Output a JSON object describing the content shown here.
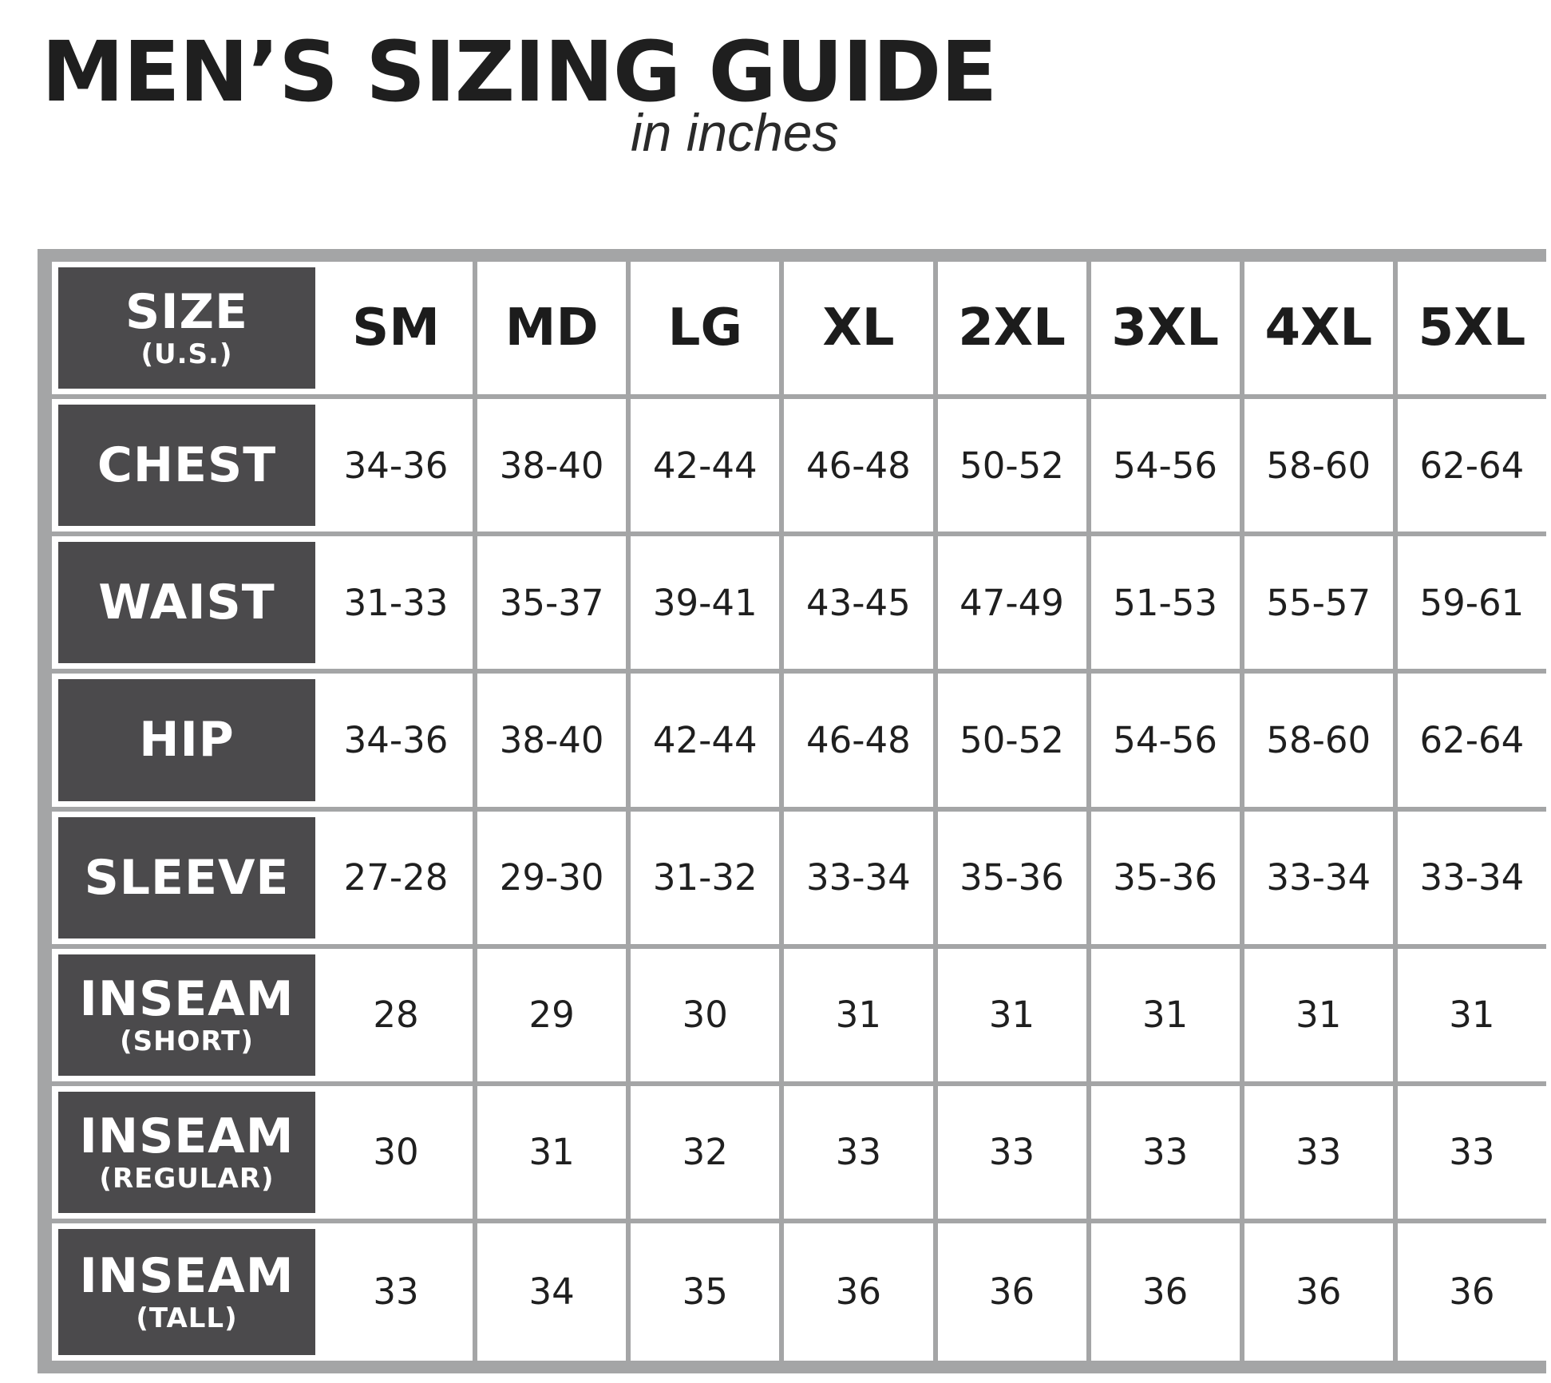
{
  "title": "MEN’S SIZING GUIDE",
  "subtitle": "in inches",
  "header": {
    "label": "SIZE",
    "sub": "(U.S.)"
  },
  "sizes": [
    "SM",
    "MD",
    "LG",
    "XL",
    "2XL",
    "3XL",
    "4XL",
    "5XL"
  ],
  "rows": [
    {
      "label": "CHEST",
      "sub": "",
      "values": [
        "34-36",
        "38-40",
        "42-44",
        "46-48",
        "50-52",
        "54-56",
        "58-60",
        "62-64"
      ]
    },
    {
      "label": "WAIST",
      "sub": "",
      "values": [
        "31-33",
        "35-37",
        "39-41",
        "43-45",
        "47-49",
        "51-53",
        "55-57",
        "59-61"
      ]
    },
    {
      "label": "HIP",
      "sub": "",
      "values": [
        "34-36",
        "38-40",
        "42-44",
        "46-48",
        "50-52",
        "54-56",
        "58-60",
        "62-64"
      ]
    },
    {
      "label": "SLEEVE",
      "sub": "",
      "values": [
        "27-28",
        "29-30",
        "31-32",
        "33-34",
        "35-36",
        "35-36",
        "33-34",
        "33-34"
      ]
    },
    {
      "label": "INSEAM",
      "sub": "(SHORT)",
      "values": [
        "28",
        "29",
        "30",
        "31",
        "31",
        "31",
        "31",
        "31"
      ]
    },
    {
      "label": "INSEAM",
      "sub": "(REGULAR)",
      "values": [
        "30",
        "31",
        "32",
        "33",
        "33",
        "33",
        "33",
        "33"
      ]
    },
    {
      "label": "INSEAM",
      "sub": "(TALL)",
      "values": [
        "33",
        "34",
        "35",
        "36",
        "36",
        "36",
        "36",
        "36"
      ]
    }
  ],
  "colors": {
    "label_fill": "#4b4a4c",
    "grid_lines": "#a4a5a6",
    "text": "#1f1f1f"
  }
}
